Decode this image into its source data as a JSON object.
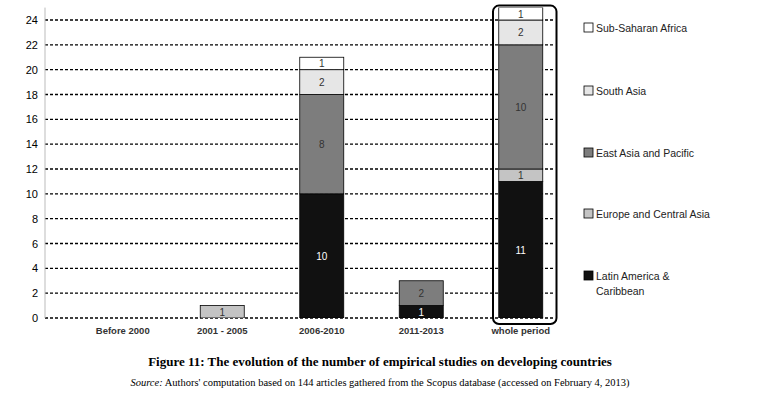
{
  "chart_data": {
    "type": "bar",
    "stacked": true,
    "data_labels": true,
    "grid": true,
    "legend": "right",
    "title": "Figure 11: The evolution of the number of empirical studies on developing countries",
    "source": {
      "label": "Source:",
      "text": "Authors' computation based on 144 articles gathered from the Scopus database (accessed on February 4, 2013)"
    },
    "categories": [
      "Before 2000",
      "2001 - 2005",
      "2006-2010",
      "2011-2013",
      "whole period"
    ],
    "ylim": [
      0,
      25
    ],
    "yticks": [
      0,
      2,
      4,
      6,
      8,
      10,
      12,
      14,
      16,
      18,
      20,
      22,
      24
    ],
    "series": [
      {
        "name": "Latin America & Caribbean",
        "color": "#111111",
        "values": [
          0,
          0,
          10,
          1,
          11
        ]
      },
      {
        "name": "Europe and Central Asia",
        "color": "#c4c4c4",
        "values": [
          0,
          1,
          0,
          0,
          1
        ]
      },
      {
        "name": "East Asia and Pacific",
        "color": "#7d7d7d",
        "values": [
          0,
          0,
          8,
          2,
          10
        ]
      },
      {
        "name": "South Asia",
        "color": "#e6e6e6",
        "values": [
          0,
          0,
          2,
          0,
          2
        ]
      },
      {
        "name": "Sub-Saharan Africa",
        "color": "#ffffff",
        "values": [
          0,
          0,
          1,
          0,
          1
        ]
      }
    ]
  }
}
